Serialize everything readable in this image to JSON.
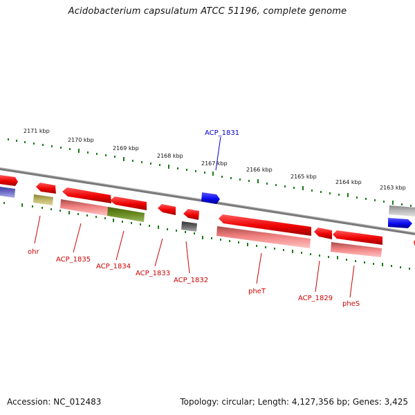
{
  "title": "Acidobacterium capsulatum ATCC 51196, complete genome",
  "footer": {
    "accession": "Accession: NC_012483",
    "summary": "Topology: circular; Length: 4,127,356 bp; Genes: 3,425"
  },
  "scale_labels": [
    "2171 kbp",
    "2170 kbp",
    "2169 kbp",
    "2168 kbp",
    "2167 kbp",
    "2166 kbp",
    "2165 kbp",
    "2164 kbp",
    "2163 kbp"
  ],
  "colors": {
    "backbone": "#808080",
    "tick": "#1a7a1a",
    "gene_label": "#cc0000",
    "blue_label": "#0000cc"
  },
  "genes": [
    {
      "label": "ACP_1831",
      "color": "#1010ee",
      "label_color": "#0000cc"
    },
    {
      "label": "ohr",
      "color": "#b0a858",
      "label_color": "#cc0000"
    },
    {
      "label": "ACP_1835",
      "color": "#ee8080",
      "label_color": "#cc0000"
    },
    {
      "label": "ACP_1834",
      "color": "#6b8c22",
      "label_color": "#cc0000"
    },
    {
      "label": "ACP_1833",
      "color": "#ee1111",
      "label_color": "#cc0000"
    },
    {
      "label": "ACP_1832",
      "color": "#666666",
      "label_color": "#cc0000"
    },
    {
      "label": "pheT",
      "color": "#ee8080",
      "label_color": "#cc0000"
    },
    {
      "label": "ACP_1829",
      "color": "#ee1111",
      "label_color": "#cc0000"
    },
    {
      "label": "pheS",
      "color": "#ee8080",
      "label_color": "#cc0000"
    }
  ]
}
